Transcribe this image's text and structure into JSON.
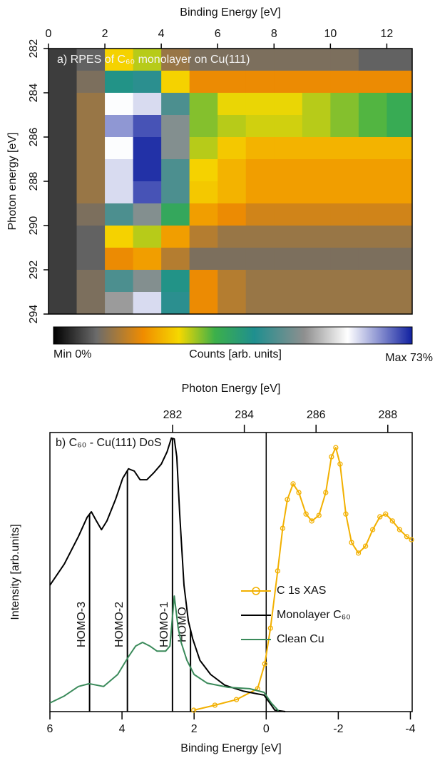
{
  "chart_data": [
    {
      "type": "heatmap",
      "title": "a) RPES of C₆₀ monolayer on Cu(111)",
      "xlabel": "Binding Energy [eV]",
      "ylabel": "Photon energy [eV]",
      "x": [
        0.5,
        1.5,
        2.5,
        3.5,
        4.5,
        5.5,
        6.5,
        7.5,
        8.5,
        9.5,
        10.5,
        11.5,
        12.5
      ],
      "y": [
        282.5,
        283.5,
        284.5,
        285.5,
        286.5,
        287.5,
        288.5,
        289.5,
        290.5,
        291.5,
        292.5,
        293.5
      ],
      "z": [
        [
          5,
          8,
          25,
          28,
          12,
          10,
          10,
          10,
          10,
          10,
          10,
          8,
          8
        ],
        [
          5,
          10,
          40,
          42,
          25,
          18,
          18,
          18,
          18,
          18,
          18,
          18,
          18
        ],
        [
          5,
          12,
          60,
          62,
          45,
          30,
          26,
          26,
          26,
          28,
          30,
          32,
          34
        ],
        [
          5,
          12,
          66,
          70,
          50,
          30,
          28,
          27,
          27,
          28,
          30,
          32,
          34
        ],
        [
          5,
          12,
          60,
          72,
          50,
          28,
          24,
          22,
          22,
          22,
          22,
          22,
          22
        ],
        [
          5,
          12,
          62,
          72,
          45,
          25,
          22,
          20,
          20,
          20,
          20,
          20,
          20
        ],
        [
          5,
          12,
          62,
          70,
          45,
          24,
          22,
          20,
          20,
          20,
          20,
          20,
          20
        ],
        [
          5,
          10,
          45,
          50,
          35,
          20,
          18,
          16,
          16,
          16,
          16,
          16,
          16
        ],
        [
          5,
          8,
          25,
          28,
          20,
          14,
          12,
          12,
          12,
          12,
          12,
          12,
          12
        ],
        [
          5,
          8,
          18,
          20,
          14,
          10,
          10,
          10,
          10,
          10,
          10,
          10,
          10
        ],
        [
          5,
          10,
          45,
          50,
          40,
          18,
          14,
          12,
          12,
          12,
          12,
          12,
          12
        ],
        [
          5,
          10,
          52,
          62,
          42,
          18,
          14,
          12,
          12,
          12,
          12,
          12,
          12
        ]
      ],
      "xlim": [
        0,
        12.9
      ],
      "ylim": [
        282,
        294
      ],
      "xticks": [
        0,
        2,
        4,
        6,
        8,
        10,
        12
      ],
      "yticks": [
        282,
        284,
        286,
        288,
        290,
        292,
        294
      ],
      "x_axis_position": "top",
      "y_inverted": true,
      "zlim": [
        0,
        73
      ],
      "colorscale": [
        [
          0,
          "#000000"
        ],
        [
          0.12,
          "#6b6b6b"
        ],
        [
          0.25,
          "#f08c00"
        ],
        [
          0.35,
          "#f5d800"
        ],
        [
          0.45,
          "#3cb04a"
        ],
        [
          0.56,
          "#1f8f8f"
        ],
        [
          0.7,
          "#8f8f8f"
        ],
        [
          0.82,
          "#ffffff"
        ],
        [
          1,
          "#1020a0"
        ]
      ],
      "colorbar": {
        "min_label": "Min 0%",
        "label": "Counts [arb. units]",
        "max_label": "Max 73%"
      }
    },
    {
      "type": "line",
      "title": "b) C₆₀ - Cu(111) DoS",
      "xlabel": "Binding Energy [eV]",
      "x2label": "Photon Energy [eV]",
      "ylabel": "Intensity [arb.units]",
      "xlim": [
        6,
        -4.05
      ],
      "xticks": [
        6,
        4,
        2,
        0,
        -2,
        -4
      ],
      "x2lim": [
        278.58,
        288.68
      ],
      "x2ticks": [
        282,
        284,
        286,
        288
      ],
      "ylim": [
        0,
        100
      ],
      "legend": "center right",
      "reference_line_x": 0,
      "series": [
        {
          "name": "C 1s XAS",
          "color": "#f2b000",
          "axis": "x2",
          "marker": "circle",
          "x": [
            282.59,
            283.18,
            283.78,
            284.37,
            284.57,
            284.73,
            284.93,
            285.07,
            285.2,
            285.36,
            285.52,
            285.72,
            285.88,
            286.08,
            286.27,
            286.43,
            286.55,
            286.67,
            286.83,
            286.99,
            287.18,
            287.38,
            287.58,
            287.78,
            287.94,
            288.13,
            288.33,
            288.53,
            288.66
          ],
          "values": [
            0.5,
            2.3,
            4.3,
            8.2,
            17.1,
            29.9,
            50.4,
            65.7,
            76.0,
            81.6,
            78.5,
            70.8,
            68.3,
            70.3,
            78.5,
            91.3,
            94.6,
            88.7,
            70.8,
            60.6,
            56.8,
            59.3,
            65.2,
            69.8,
            70.8,
            68.3,
            65.2,
            62.7,
            61.6
          ]
        },
        {
          "name": "Monolayer C₆₀",
          "color": "#000000",
          "x": [
            6.0,
            5.6,
            5.21,
            4.97,
            4.85,
            4.71,
            4.57,
            4.42,
            4.18,
            3.98,
            3.82,
            3.66,
            3.5,
            3.31,
            3.11,
            2.91,
            2.75,
            2.63,
            2.55,
            2.48,
            2.4,
            2.28,
            2.16,
            2.04,
            1.84,
            1.54,
            1.15,
            0.65,
            0.26,
            0.06,
            -0.1,
            -0.24,
            -0.53
          ],
          "values": [
            45.3,
            52.9,
            62.7,
            69.6,
            71.6,
            68.3,
            65.2,
            68.3,
            76.0,
            83.6,
            87.0,
            86.2,
            83.1,
            83.1,
            85.7,
            88.7,
            93.1,
            98.0,
            97.7,
            91.3,
            70.8,
            45.3,
            32.5,
            26.1,
            18.4,
            13.3,
            9.5,
            7.4,
            6.4,
            5.9,
            3.1,
            0.5,
            0
          ]
        },
        {
          "name": "Clean Cu",
          "color": "#3a8a5a",
          "x": [
            6.0,
            5.6,
            5.21,
            4.91,
            4.51,
            4.12,
            3.82,
            3.62,
            3.43,
            3.23,
            3.03,
            2.79,
            2.67,
            2.55,
            2.44,
            2.36,
            2.2,
            2.0,
            1.64,
            1.05,
            0.46,
            0.06,
            -0.14,
            -0.34
          ],
          "values": [
            3.1,
            5.6,
            9.0,
            10.0,
            9.0,
            13.3,
            19.7,
            23.5,
            24.8,
            23.5,
            21.7,
            21.7,
            23.5,
            41.4,
            29.9,
            24.8,
            18.4,
            13.3,
            10.2,
            8.7,
            8.2,
            6.9,
            3.1,
            0.3
          ]
        }
      ],
      "annotations": [
        {
          "x": 4.9,
          "label": "HOMO-3"
        },
        {
          "x": 3.85,
          "label": "HOMO-2"
        },
        {
          "x": 2.6,
          "label": "HOMO-1"
        },
        {
          "x": 2.1,
          "label": "HOMO"
        }
      ]
    }
  ]
}
